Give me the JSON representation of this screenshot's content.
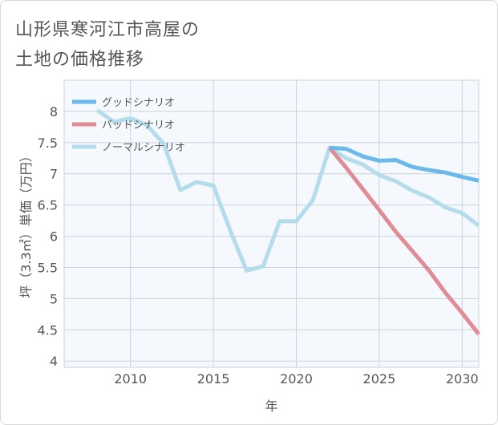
{
  "title_line1": "山形県寒河江市高屋の",
  "title_line2": "土地の価格推移",
  "chart_data": {
    "type": "line",
    "title": "山形県寒河江市高屋の土地の価格推移",
    "xlabel": "年",
    "ylabel": "坪（3.3㎡）単価（万円）",
    "xlim": [
      2006,
      2031
    ],
    "ylim": [
      3.9,
      8.5
    ],
    "xticks": [
      2010,
      2015,
      2020,
      2025,
      2030
    ],
    "yticks": [
      4,
      4.5,
      5,
      5.5,
      6,
      6.5,
      7,
      7.5,
      8
    ],
    "series": [
      {
        "name": "グッドシナリオ",
        "color": "#6bb8ea",
        "x": [
          2022,
          2023,
          2024,
          2025,
          2026,
          2027,
          2028,
          2029,
          2030,
          2031
        ],
        "values": [
          7.42,
          7.4,
          7.28,
          7.21,
          7.22,
          7.11,
          7.06,
          7.02,
          6.95,
          6.89
        ]
      },
      {
        "name": "バッドシナリオ",
        "color": "#e08c94",
        "x": [
          2022,
          2023,
          2024,
          2025,
          2026,
          2027,
          2028,
          2029,
          2030,
          2031
        ],
        "values": [
          7.42,
          7.1,
          6.76,
          6.42,
          6.07,
          5.76,
          5.45,
          5.09,
          4.77,
          4.43
        ]
      },
      {
        "name": "ノーマルシナリオ",
        "color": "#b3dcec",
        "x": [
          2008,
          2009,
          2010,
          2011,
          2012,
          2013,
          2014,
          2015,
          2016,
          2017,
          2018,
          2019,
          2020,
          2021,
          2022,
          2023,
          2024,
          2025,
          2026,
          2027,
          2028,
          2029,
          2030,
          2031
        ],
        "values": [
          8.02,
          7.83,
          7.89,
          7.78,
          7.48,
          6.74,
          6.87,
          6.81,
          6.1,
          5.45,
          5.52,
          6.24,
          6.24,
          6.58,
          7.42,
          7.25,
          7.15,
          6.98,
          6.88,
          6.73,
          6.62,
          6.46,
          6.37,
          6.17
        ]
      }
    ]
  }
}
